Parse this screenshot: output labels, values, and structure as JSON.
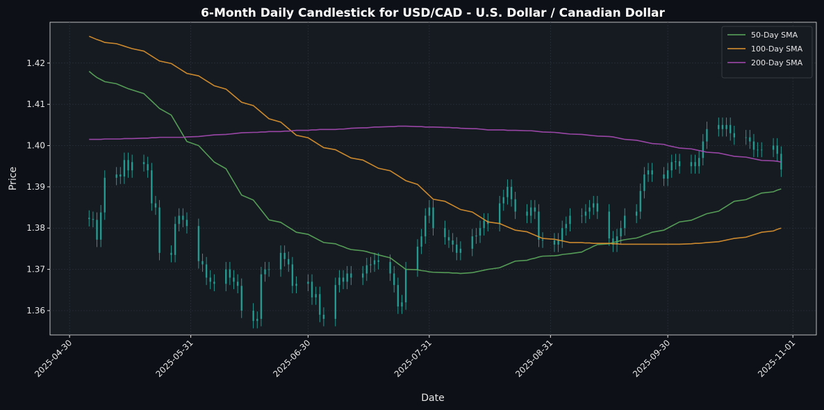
{
  "chart_data": {
    "type": "candlestick",
    "title": "6-Month Daily Candlestick for USD/CAD - U.S. Dollar / Canadian Dollar",
    "xlabel": "Date",
    "ylabel": "Price",
    "candle_color": "#26a69a",
    "grid": true,
    "legend": "upper right",
    "x": [
      "2025-05-05",
      "2025-05-06",
      "2025-05-07",
      "2025-05-08",
      "2025-05-09",
      "2025-05-12",
      "2025-05-13",
      "2025-05-14",
      "2025-05-15",
      "2025-05-16",
      "2025-05-19",
      "2025-05-20",
      "2025-05-21",
      "2025-05-22",
      "2025-05-23",
      "2025-05-26",
      "2025-05-27",
      "2025-05-28",
      "2025-05-29",
      "2025-05-30",
      "2025-06-02",
      "2025-06-03",
      "2025-06-04",
      "2025-06-05",
      "2025-06-06",
      "2025-06-09",
      "2025-06-10",
      "2025-06-11",
      "2025-06-12",
      "2025-06-13",
      "2025-06-16",
      "2025-06-17",
      "2025-06-18",
      "2025-06-19",
      "2025-06-20",
      "2025-06-23",
      "2025-06-24",
      "2025-06-25",
      "2025-06-26",
      "2025-06-27",
      "2025-06-30",
      "2025-07-01",
      "2025-07-02",
      "2025-07-03",
      "2025-07-04",
      "2025-07-07",
      "2025-07-08",
      "2025-07-09",
      "2025-07-10",
      "2025-07-11",
      "2025-07-14",
      "2025-07-15",
      "2025-07-16",
      "2025-07-17",
      "2025-07-18",
      "2025-07-21",
      "2025-07-22",
      "2025-07-23",
      "2025-07-24",
      "2025-07-25",
      "2025-07-28",
      "2025-07-29",
      "2025-07-30",
      "2025-07-31",
      "2025-08-01",
      "2025-08-04",
      "2025-08-05",
      "2025-08-06",
      "2025-08-07",
      "2025-08-08",
      "2025-08-11",
      "2025-08-12",
      "2025-08-13",
      "2025-08-14",
      "2025-08-15",
      "2025-08-18",
      "2025-08-19",
      "2025-08-20",
      "2025-08-21",
      "2025-08-22",
      "2025-08-25",
      "2025-08-26",
      "2025-08-27",
      "2025-08-28",
      "2025-08-29",
      "2025-09-01",
      "2025-09-02",
      "2025-09-03",
      "2025-09-04",
      "2025-09-05",
      "2025-09-08",
      "2025-09-09",
      "2025-09-10",
      "2025-09-11",
      "2025-09-12",
      "2025-09-15",
      "2025-09-16",
      "2025-09-17",
      "2025-09-18",
      "2025-09-19",
      "2025-09-22",
      "2025-09-23",
      "2025-09-24",
      "2025-09-25",
      "2025-09-26",
      "2025-09-29",
      "2025-09-30",
      "2025-10-01",
      "2025-10-02",
      "2025-10-03",
      "2025-10-06",
      "2025-10-07",
      "2025-10-08",
      "2025-10-09",
      "2025-10-10",
      "2025-10-13",
      "2025-10-14",
      "2025-10-15",
      "2025-10-16",
      "2025-10-17",
      "2025-10-20",
      "2025-10-21",
      "2025-10-22",
      "2025-10-23",
      "2025-10-24",
      "2025-10-27",
      "2025-10-28",
      "2025-10-29"
    ],
    "open": [
      1.3825,
      1.3822,
      1.382,
      1.3772,
      1.3838,
      1.3922,
      1.393,
      1.3925,
      1.3965,
      1.394,
      1.396,
      1.3955,
      1.394,
      1.386,
      1.385,
      1.374,
      1.3735,
      1.381,
      1.383,
      1.382,
      1.3805,
      1.372,
      1.3712,
      1.368,
      1.367,
      1.3665,
      1.37,
      1.368,
      1.367,
      1.366,
      1.36,
      1.3575,
      1.358,
      1.3688,
      1.37,
      1.37,
      1.374,
      1.3725,
      1.3712,
      1.366,
      1.3665,
      1.367,
      1.3632,
      1.364,
      1.359,
      1.358,
      1.3662,
      1.368,
      1.367,
      1.369,
      1.368,
      1.369,
      1.371,
      1.3712,
      1.3722,
      1.3718,
      1.369,
      1.3662,
      1.361,
      1.362,
      1.37,
      1.3755,
      1.378,
      1.383,
      1.385,
      1.38,
      1.3778,
      1.377,
      1.376,
      1.374,
      1.375,
      1.378,
      1.3782,
      1.38,
      1.3818,
      1.381,
      1.386,
      1.3875,
      1.39,
      1.387,
      1.384,
      1.383,
      1.385,
      1.384,
      1.3772,
      1.377,
      1.376,
      1.377,
      1.38,
      1.381,
      1.383,
      1.383,
      1.384,
      1.385,
      1.386,
      1.384,
      1.3775,
      1.376,
      1.378,
      1.38,
      1.383,
      1.384,
      1.389,
      1.393,
      1.394,
      1.393,
      1.392,
      1.394,
      1.396,
      1.3962,
      1.395,
      1.396,
      1.395,
      1.397,
      1.401,
      1.404,
      1.405,
      1.404,
      1.405,
      1.403,
      1.402,
      1.402,
      1.401,
      1.399,
      1.399,
      1.399,
      1.4,
      1.398
    ],
    "high": [
      1.3843,
      1.384,
      1.3838,
      1.3856,
      1.394,
      1.3948,
      1.3948,
      1.3983,
      1.3983,
      1.3978,
      1.3978,
      1.3973,
      1.3958,
      1.3878,
      1.3868,
      1.3758,
      1.3828,
      1.3848,
      1.3848,
      1.3838,
      1.3823,
      1.3738,
      1.373,
      1.3698,
      1.3688,
      1.3718,
      1.3718,
      1.3698,
      1.3688,
      1.3678,
      1.3618,
      1.3598,
      1.3706,
      1.3718,
      1.3718,
      1.3758,
      1.3758,
      1.3743,
      1.373,
      1.3683,
      1.3688,
      1.3688,
      1.3658,
      1.3658,
      1.3608,
      1.368,
      1.3698,
      1.3698,
      1.3708,
      1.3708,
      1.3708,
      1.3728,
      1.373,
      1.374,
      1.374,
      1.3736,
      1.3708,
      1.368,
      1.3638,
      1.3718,
      1.3773,
      1.3798,
      1.3848,
      1.3868,
      1.3868,
      1.3818,
      1.3796,
      1.3788,
      1.3778,
      1.3768,
      1.3798,
      1.38,
      1.3818,
      1.3836,
      1.3836,
      1.3878,
      1.3893,
      1.3918,
      1.3918,
      1.3888,
      1.3858,
      1.3868,
      1.3868,
      1.3858,
      1.379,
      1.3788,
      1.3788,
      1.3818,
      1.3828,
      1.3848,
      1.3848,
      1.3858,
      1.3868,
      1.3878,
      1.3878,
      1.3858,
      1.3793,
      1.3798,
      1.3818,
      1.3848,
      1.3858,
      1.3908,
      1.3948,
      1.3958,
      1.3958,
      1.3948,
      1.3958,
      1.3978,
      1.398,
      1.398,
      1.3978,
      1.3978,
      1.3988,
      1.4028,
      1.4058,
      1.4068,
      1.4068,
      1.4068,
      1.4068,
      1.4048,
      1.4038,
      1.4038,
      1.4028,
      1.4008,
      1.4008,
      1.4018,
      1.4018,
      1.3998
    ],
    "low": [
      1.3804,
      1.3802,
      1.3754,
      1.3754,
      1.382,
      1.3904,
      1.3907,
      1.3907,
      1.3922,
      1.3922,
      1.3937,
      1.3922,
      1.3842,
      1.3832,
      1.3722,
      1.3717,
      1.3717,
      1.3792,
      1.3802,
      1.3787,
      1.3702,
      1.3694,
      1.3662,
      1.3652,
      1.3647,
      1.3647,
      1.3662,
      1.3652,
      1.3642,
      1.3582,
      1.3557,
      1.3557,
      1.3562,
      1.367,
      1.3682,
      1.3682,
      1.3707,
      1.3694,
      1.3642,
      1.3642,
      1.3647,
      1.3614,
      1.3614,
      1.3572,
      1.3562,
      1.3562,
      1.3644,
      1.3652,
      1.3652,
      1.3662,
      1.3662,
      1.3672,
      1.3692,
      1.3694,
      1.37,
      1.3672,
      1.3644,
      1.3592,
      1.3592,
      1.3602,
      1.3682,
      1.3737,
      1.3762,
      1.3812,
      1.3782,
      1.376,
      1.3752,
      1.3742,
      1.3722,
      1.3722,
      1.3732,
      1.3762,
      1.3764,
      1.3782,
      1.3792,
      1.3792,
      1.3842,
      1.3857,
      1.3852,
      1.3822,
      1.3812,
      1.3812,
      1.3822,
      1.3754,
      1.3752,
      1.3742,
      1.3742,
      1.3752,
      1.3782,
      1.3792,
      1.3812,
      1.3812,
      1.3822,
      1.3832,
      1.3822,
      1.3757,
      1.3742,
      1.3742,
      1.3762,
      1.3782,
      1.3812,
      1.3822,
      1.3872,
      1.3912,
      1.3912,
      1.3902,
      1.3902,
      1.3922,
      1.3942,
      1.3932,
      1.3932,
      1.3932,
      1.3932,
      1.3952,
      1.3992,
      1.4022,
      1.4022,
      1.4022,
      1.4012,
      1.4002,
      1.4002,
      1.3992,
      1.3972,
      1.3972,
      1.3972,
      1.3972,
      1.3962,
      1.3924
    ],
    "close": [
      1.3822,
      1.382,
      1.3772,
      1.3838,
      1.3922,
      1.393,
      1.3925,
      1.3965,
      1.394,
      1.396,
      1.3955,
      1.394,
      1.386,
      1.385,
      1.374,
      1.3735,
      1.381,
      1.383,
      1.382,
      1.3805,
      1.372,
      1.3712,
      1.368,
      1.367,
      1.3665,
      1.37,
      1.368,
      1.367,
      1.366,
      1.36,
      1.3575,
      1.358,
      1.3688,
      1.37,
      1.37,
      1.374,
      1.3725,
      1.3712,
      1.366,
      1.3665,
      1.367,
      1.3632,
      1.364,
      1.359,
      1.358,
      1.3662,
      1.368,
      1.367,
      1.369,
      1.368,
      1.369,
      1.371,
      1.3712,
      1.3722,
      1.3718,
      1.369,
      1.3662,
      1.361,
      1.362,
      1.37,
      1.3755,
      1.378,
      1.383,
      1.385,
      1.38,
      1.3778,
      1.377,
      1.376,
      1.374,
      1.375,
      1.378,
      1.3782,
      1.38,
      1.3818,
      1.381,
      1.386,
      1.3875,
      1.39,
      1.387,
      1.384,
      1.383,
      1.385,
      1.384,
      1.3772,
      1.377,
      1.376,
      1.377,
      1.38,
      1.381,
      1.383,
      1.383,
      1.384,
      1.385,
      1.386,
      1.384,
      1.3775,
      1.376,
      1.378,
      1.38,
      1.383,
      1.384,
      1.389,
      1.393,
      1.394,
      1.393,
      1.392,
      1.394,
      1.396,
      1.3962,
      1.395,
      1.396,
      1.395,
      1.397,
      1.401,
      1.404,
      1.405,
      1.404,
      1.405,
      1.403,
      1.402,
      1.402,
      1.401,
      1.399,
      1.399,
      1.399,
      1.4,
      1.398,
      1.3942
    ],
    "series": [
      {
        "name": "50-Day SMA",
        "color": "#5cab5c",
        "values": [
          1.418,
          1.4172,
          1.4165,
          1.416,
          1.4155,
          1.415,
          1.4146,
          1.4142,
          1.4138,
          1.4135,
          1.4126,
          1.4117,
          1.4108,
          1.4099,
          1.409,
          1.4074,
          1.4058,
          1.4042,
          1.4026,
          1.401,
          1.4,
          1.399,
          1.398,
          1.397,
          1.396,
          1.3944,
          1.3928,
          1.3912,
          1.3896,
          1.388,
          1.3868,
          1.3856,
          1.3844,
          1.3832,
          1.382,
          1.3814,
          1.3808,
          1.3802,
          1.3796,
          1.379,
          1.3785,
          1.378,
          1.3775,
          1.377,
          1.3765,
          1.3762,
          1.3758,
          1.3755,
          1.3751,
          1.3748,
          1.3745,
          1.3743,
          1.374,
          1.3738,
          1.3735,
          1.3728,
          1.3721,
          1.3714,
          1.3707,
          1.37,
          1.3699,
          1.3697,
          1.3696,
          1.3694,
          1.3693,
          1.3692,
          1.3692,
          1.3691,
          1.3691,
          1.369,
          1.3692,
          1.3694,
          1.3696,
          1.3698,
          1.37,
          1.3704,
          1.3708,
          1.3712,
          1.3716,
          1.372,
          1.3722,
          1.3725,
          1.3727,
          1.373,
          1.3732,
          1.3733,
          1.3734,
          1.3736,
          1.3737,
          1.3738,
          1.3742,
          1.3747,
          1.3751,
          1.3756,
          1.376,
          1.3762,
          1.3765,
          1.3767,
          1.377,
          1.3772,
          1.3776,
          1.3779,
          1.3783,
          1.3786,
          1.379,
          1.3795,
          1.38,
          1.3805,
          1.381,
          1.3815,
          1.3819,
          1.3823,
          1.3827,
          1.3831,
          1.3835,
          1.3841,
          1.3847,
          1.3853,
          1.3859,
          1.3865,
          1.3869,
          1.3873,
          1.3877,
          1.3881,
          1.3885,
          1.3888,
          1.3892,
          1.3895
        ]
      },
      {
        "name": "100-Day SMA",
        "color": "#e0962f",
        "values": [
          1.4265,
          1.4261,
          1.4257,
          1.4254,
          1.425,
          1.4247,
          1.4244,
          1.4241,
          1.4238,
          1.4235,
          1.4229,
          1.4223,
          1.4217,
          1.4211,
          1.4205,
          1.4199,
          1.4193,
          1.4187,
          1.4181,
          1.4175,
          1.4169,
          1.4163,
          1.4157,
          1.4151,
          1.4145,
          1.4137,
          1.4129,
          1.4121,
          1.4113,
          1.4105,
          1.4097,
          1.4089,
          1.4081,
          1.4073,
          1.4065,
          1.4057,
          1.4049,
          1.4041,
          1.4033,
          1.4025,
          1.4019,
          1.4013,
          1.4007,
          1.4001,
          1.3995,
          1.399,
          1.3985,
          1.398,
          1.3975,
          1.397,
          1.3965,
          1.396,
          1.3955,
          1.395,
          1.3945,
          1.3939,
          1.3933,
          1.3927,
          1.3921,
          1.3915,
          1.3906,
          1.3897,
          1.3888,
          1.3879,
          1.387,
          1.3865,
          1.386,
          1.3855,
          1.385,
          1.3845,
          1.3839,
          1.3833,
          1.3827,
          1.3821,
          1.3815,
          1.3811,
          1.3807,
          1.3803,
          1.3799,
          1.3795,
          1.3791,
          1.3787,
          1.3783,
          1.3779,
          1.3775,
          1.3773,
          1.3771,
          1.3769,
          1.3767,
          1.3765,
          1.3765,
          1.3764,
          1.3764,
          1.3763,
          1.3763,
          1.3763,
          1.3762,
          1.3762,
          1.3761,
          1.3761,
          1.3761,
          1.3761,
          1.3761,
          1.3761,
          1.3761,
          1.3761,
          1.3761,
          1.3761,
          1.3761,
          1.3761,
          1.3762,
          1.3763,
          1.3763,
          1.3764,
          1.3765,
          1.3767,
          1.3769,
          1.3771,
          1.3773,
          1.3775,
          1.3778,
          1.3781,
          1.3784,
          1.3787,
          1.379,
          1.3793,
          1.3797,
          1.38
        ]
      },
      {
        "name": "200-Day SMA",
        "color": "#a84bb5",
        "values": [
          1.4015,
          1.4015,
          1.4015,
          1.4015,
          1.4016,
          1.4016,
          1.4016,
          1.4017,
          1.4017,
          1.4017,
          1.4018,
          1.4018,
          1.4019,
          1.4019,
          1.402,
          1.402,
          1.402,
          1.402,
          1.402,
          1.4021,
          1.4022,
          1.4023,
          1.4024,
          1.4025,
          1.4026,
          1.4027,
          1.4028,
          1.4029,
          1.403,
          1.4031,
          1.4032,
          1.4032,
          1.4033,
          1.4033,
          1.4034,
          1.4034,
          1.4035,
          1.4035,
          1.4036,
          1.4037,
          1.4037,
          1.4038,
          1.4038,
          1.4039,
          1.4039,
          1.4039,
          1.404,
          1.404,
          1.4041,
          1.4042,
          1.4043,
          1.4043,
          1.4044,
          1.4045,
          1.4045,
          1.4046,
          1.4046,
          1.4047,
          1.4047,
          1.4047,
          1.4046,
          1.4046,
          1.4045,
          1.4045,
          1.4045,
          1.4044,
          1.4044,
          1.4043,
          1.4043,
          1.4042,
          1.4041,
          1.4041,
          1.404,
          1.4039,
          1.4038,
          1.4038,
          1.4038,
          1.4037,
          1.4037,
          1.4037,
          1.4036,
          1.4036,
          1.4035,
          1.4034,
          1.4033,
          1.4032,
          1.4031,
          1.403,
          1.4029,
          1.4028,
          1.4027,
          1.4026,
          1.4025,
          1.4024,
          1.4023,
          1.4022,
          1.4021,
          1.4019,
          1.4017,
          1.4015,
          1.4013,
          1.4011,
          1.4009,
          1.4007,
          1.4005,
          1.4003,
          1.4,
          1.3998,
          1.3996,
          1.3994,
          1.3992,
          1.399,
          1.3988,
          1.3986,
          1.3984,
          1.3982,
          1.398,
          1.3978,
          1.3976,
          1.3974,
          1.3972,
          1.397,
          1.3968,
          1.3966,
          1.3964,
          1.3963,
          1.3962,
          1.396
        ]
      }
    ],
    "xlim": [
      "2025-04-25",
      "2025-11-07"
    ],
    "xticks": [
      "2025-04-30",
      "2025-05-31",
      "2025-06-30",
      "2025-07-31",
      "2025-08-31",
      "2025-09-30",
      "2025-11-01"
    ],
    "ylim": [
      1.3541,
      1.4299
    ],
    "yticks": [
      1.36,
      1.37,
      1.38,
      1.39,
      {
        "value": 1.4,
        "label": "1.40"
      },
      1.41,
      1.42
    ]
  }
}
